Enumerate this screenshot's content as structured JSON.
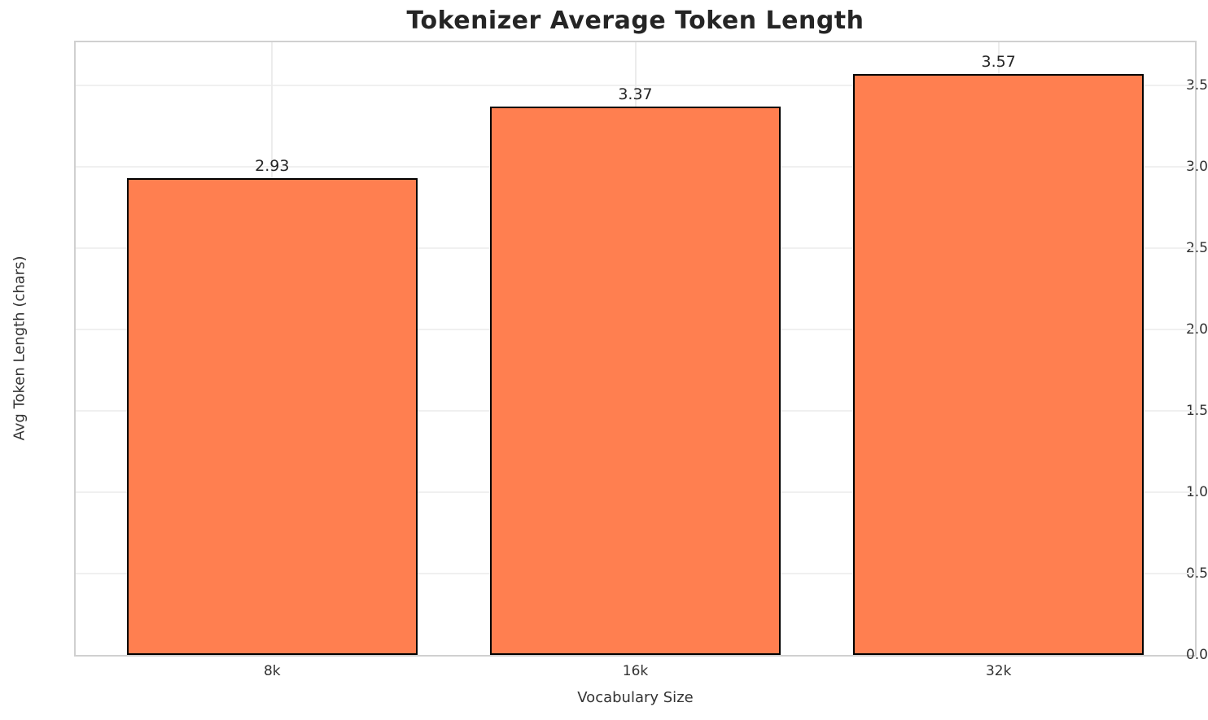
{
  "chart_data": {
    "type": "bar",
    "title": "Tokenizer Average Token Length",
    "xlabel": "Vocabulary Size",
    "ylabel": "Avg Token Length (chars)",
    "categories": [
      "8k",
      "16k",
      "32k"
    ],
    "values": [
      2.93,
      3.37,
      3.57
    ],
    "value_labels": [
      "2.93",
      "3.37",
      "3.57"
    ],
    "ylim": [
      0,
      3.766
    ],
    "yticks": [
      0,
      0.5,
      1,
      1.5,
      2,
      2.5,
      3,
      3.5
    ],
    "ytick_labels": [
      "0.0",
      "0.5",
      "1.0",
      "1.5",
      "2.0",
      "2.5",
      "3.0",
      "3.5"
    ],
    "grid": true,
    "legend_position": "none",
    "colors": {
      "bar_fill": "#FF7F50",
      "bar_edge": "#000000",
      "grid_h": "#f0f0f0",
      "grid_v": "#ececec",
      "spine": "#d0d0d0",
      "tick_text": "#333333",
      "title_text": "#252525"
    }
  }
}
